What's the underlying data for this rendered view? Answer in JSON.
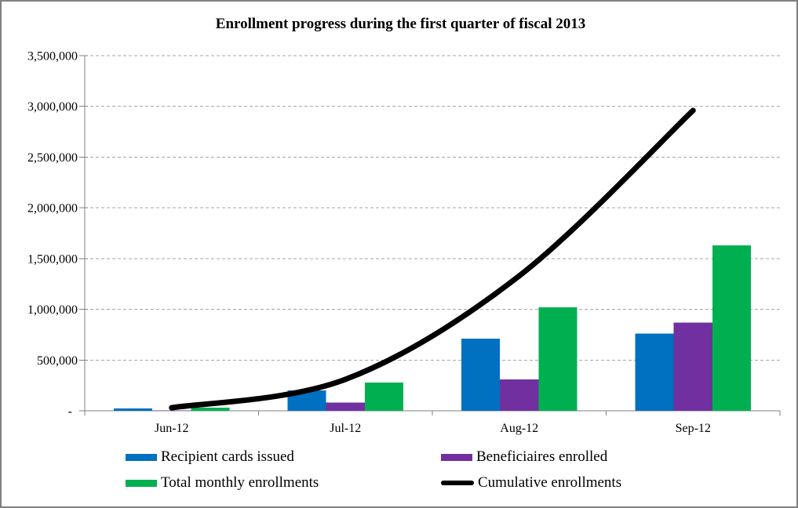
{
  "window": {
    "background": "#FFFFFF",
    "border_color": "#808080"
  },
  "chart_data": {
    "type": "combo-bar-line",
    "title": "Enrollment progress during the first quarter of fiscal 2013",
    "categories": [
      "Jun-12",
      "Jul-12",
      "Aug-12",
      "Sep-12"
    ],
    "bar_series": [
      {
        "name": "Recipient cards issued",
        "color": "#0070C0",
        "values": [
          25000,
          200000,
          710000,
          760000
        ]
      },
      {
        "name": "Beneficiaires enrolled",
        "color": "#7030A0",
        "values": [
          5000,
          80000,
          310000,
          870000
        ]
      },
      {
        "name": "Total monthly enrollments",
        "color": "#00B050",
        "values": [
          30000,
          280000,
          1020000,
          1630000
        ]
      }
    ],
    "line_series": {
      "name": "Cumulative enrollments",
      "color": "#000000",
      "values": [
        30000,
        310000,
        1330000,
        2960000
      ]
    },
    "y_axis": {
      "min": 0,
      "max": 3500000,
      "step": 500000,
      "tick_labels": [
        "-",
        "500,000",
        "1,000,000",
        "1,500,000",
        "2,000,000",
        "2,500,000",
        "3,000,000",
        "3,500,000"
      ]
    },
    "x_axis": {
      "tick_labels": [
        "Jun-12",
        "Jul-12",
        "Aug-12",
        "Sep-12"
      ]
    },
    "grid": {
      "show": true,
      "style": "dashed",
      "color": "#A6A6A6"
    },
    "axis_color": "#808080",
    "legend": {
      "position": "bottom",
      "entries": [
        {
          "label": "Recipient cards issued",
          "swatch": "rect",
          "color": "#0070C0"
        },
        {
          "label": "Beneficiaires enrolled",
          "swatch": "rect",
          "color": "#7030A0"
        },
        {
          "label": "Total monthly enrollments",
          "swatch": "rect",
          "color": "#00B050"
        },
        {
          "label": "Cumulative enrollments",
          "swatch": "line",
          "color": "#000000"
        }
      ]
    }
  }
}
